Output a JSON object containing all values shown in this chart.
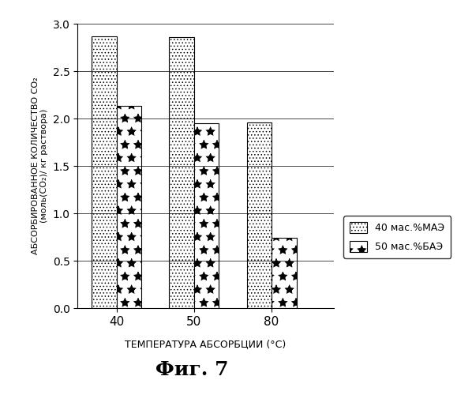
{
  "categories": [
    "40",
    "50",
    "80"
  ],
  "series1_label": "40 мас.%МАЭ",
  "series2_label": "50 мас.%БАЭ",
  "series1_values": [
    2.87,
    2.86,
    1.96
  ],
  "series2_values": [
    2.13,
    1.95,
    0.74
  ],
  "ylabel_line1": "АБСОРБИРОВАННОЕ КОЛИЧЕСТВО CO₂",
  "ylabel_line2": "(моль(CO₂)/ кг раствора)",
  "xlabel": "ТЕМПЕРАТУРА АБСОРБЦИИ (°C)",
  "title": "Фиг. 7",
  "ylim": [
    0.0,
    3.0
  ],
  "yticks": [
    0.0,
    0.5,
    1.0,
    1.5,
    2.0,
    2.5,
    3.0
  ],
  "bar_width": 0.32,
  "group_positions": [
    1,
    2,
    3
  ],
  "background_color": "#ffffff",
  "bar_edge_color": "#000000"
}
